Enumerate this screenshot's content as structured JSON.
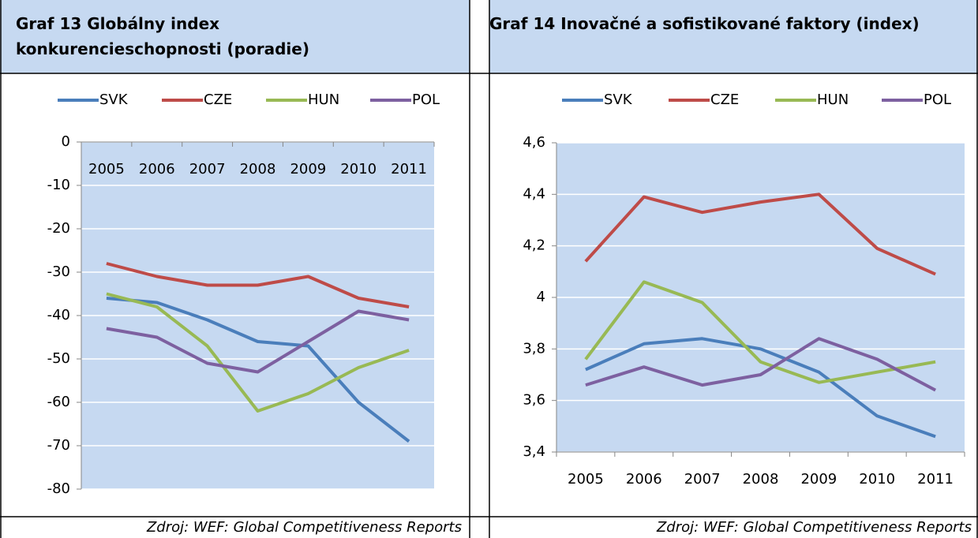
{
  "chart_data": [
    {
      "type": "line",
      "title": "Graf 13 Globálny index konkurencieschopnosti (poradie)",
      "categories": [
        "2005",
        "2006",
        "2007",
        "2008",
        "2009",
        "2010",
        "2011"
      ],
      "series": [
        {
          "name": "SVK",
          "color": "#4a7ebb",
          "values": [
            -36,
            -37,
            -41,
            -46,
            -47,
            -60,
            -69
          ]
        },
        {
          "name": "CZE",
          "color": "#be4b48",
          "values": [
            -28,
            -31,
            -33,
            -33,
            -31,
            -36,
            -38
          ]
        },
        {
          "name": "HUN",
          "color": "#98b954",
          "values": [
            -35,
            -38,
            -47,
            -62,
            -58,
            -52,
            -48
          ]
        },
        {
          "name": "POL",
          "color": "#7d60a0",
          "values": [
            -43,
            -45,
            -51,
            -53,
            -46,
            -39,
            -41
          ]
        }
      ],
      "ylim": [
        -80,
        0
      ],
      "yticks": [
        0,
        -10,
        -20,
        -30,
        -40,
        -50,
        -60,
        -70,
        -80
      ],
      "grid": true,
      "legend": "top",
      "source": "Zdroj: WEF: Global Competitiveness Reports"
    },
    {
      "type": "line",
      "title": "Graf 14 Inovačné a sofistikované faktory (index)",
      "categories": [
        "2005",
        "2006",
        "2007",
        "2008",
        "2009",
        "2010",
        "2011"
      ],
      "series": [
        {
          "name": "SVK",
          "color": "#4a7ebb",
          "values": [
            3.72,
            3.82,
            3.84,
            3.8,
            3.71,
            3.54,
            3.46
          ]
        },
        {
          "name": "CZE",
          "color": "#be4b48",
          "values": [
            4.14,
            4.39,
            4.33,
            4.37,
            4.4,
            4.19,
            4.09
          ]
        },
        {
          "name": "HUN",
          "color": "#98b954",
          "values": [
            3.76,
            4.06,
            3.98,
            3.75,
            3.67,
            3.71,
            3.75
          ]
        },
        {
          "name": "POL",
          "color": "#7d60a0",
          "values": [
            3.66,
            3.73,
            3.66,
            3.7,
            3.84,
            3.76,
            3.64
          ]
        }
      ],
      "ylim": [
        3.4,
        4.6
      ],
      "yticks": [
        {
          "value": 3.4,
          "label": "3,4"
        },
        {
          "value": 3.6,
          "label": "3,6"
        },
        {
          "value": 3.8,
          "label": "3,8"
        },
        4,
        {
          "value": 4.2,
          "label": "4,2"
        },
        {
          "value": 4.4,
          "label": "4,4"
        },
        {
          "value": 4.6,
          "label": "4,6"
        }
      ],
      "grid": true,
      "legend": "top",
      "source": "Zdroj: WEF: Global Competitiveness Reports"
    }
  ]
}
